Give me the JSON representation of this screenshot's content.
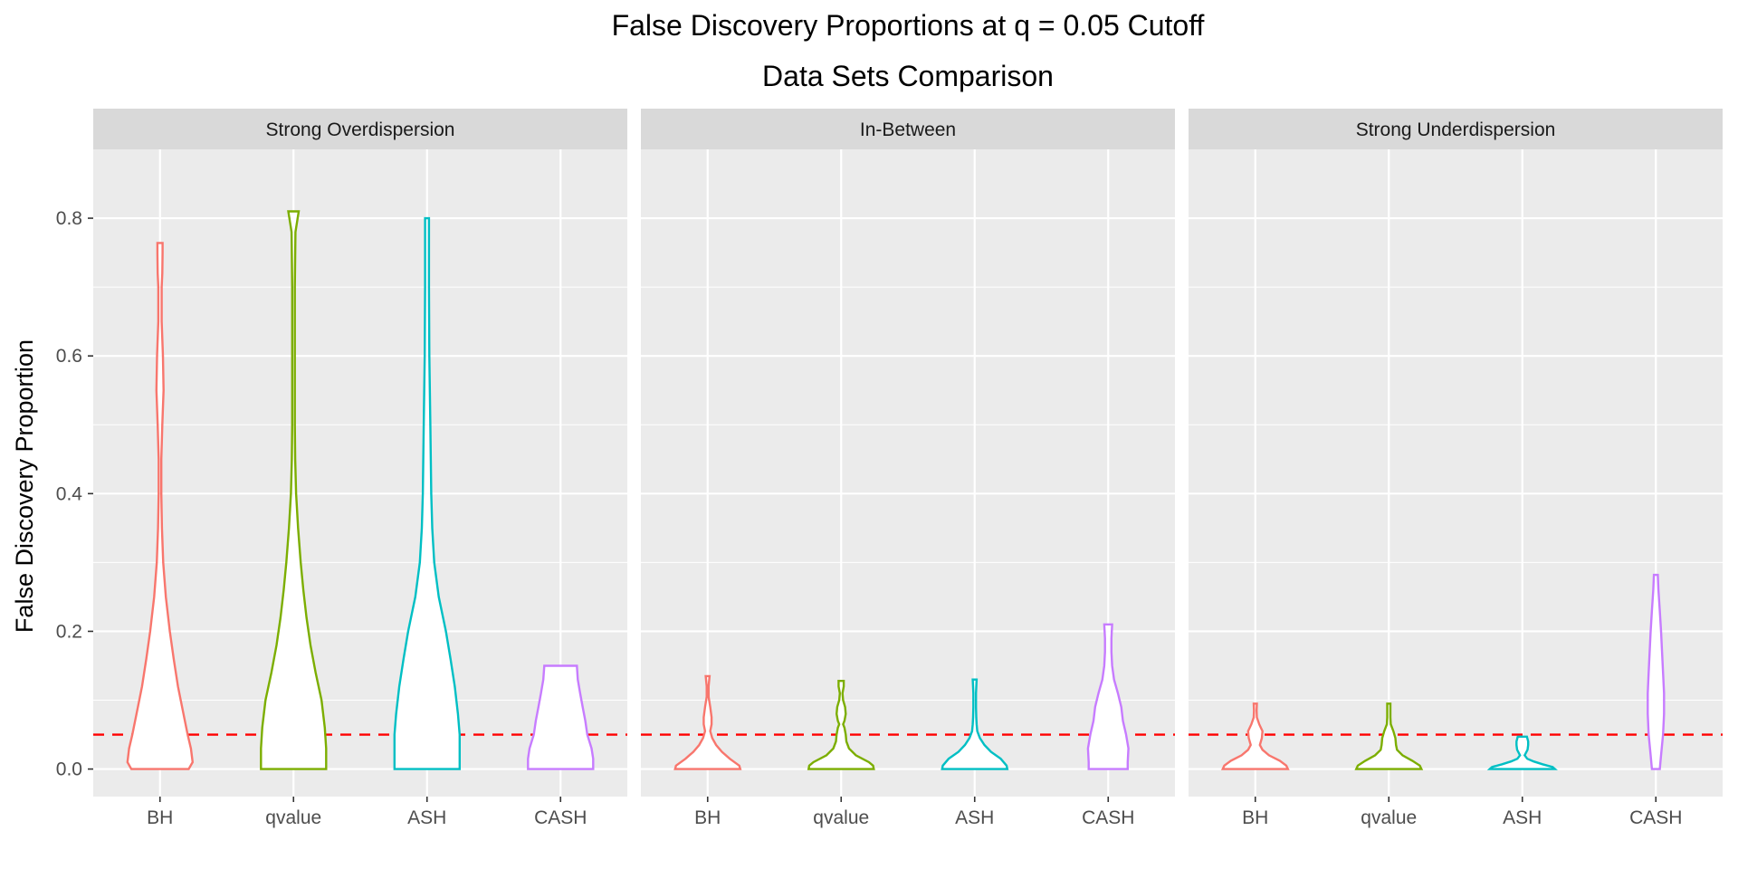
{
  "chart_data": {
    "type": "violin",
    "title": "False Discovery Proportions at q = 0.05 Cutoff",
    "subtitle": "Data Sets Comparison",
    "xlabel": "",
    "ylabel": "False Discovery Proportion",
    "ylim": [
      -0.04,
      0.9
    ],
    "yticks": [
      0.0,
      0.2,
      0.4,
      0.6,
      0.8
    ],
    "ytick_labels": [
      "0.0",
      "0.2",
      "0.4",
      "0.6",
      "0.8"
    ],
    "grid": true,
    "legend": "none",
    "reference_line": {
      "y": 0.05,
      "style": "dashed",
      "color": "#ff0000"
    },
    "categories": [
      "BH",
      "qvalue",
      "ASH",
      "CASH"
    ],
    "colors": [
      "#F8766D",
      "#7CAE00",
      "#00BFC4",
      "#C77CFF"
    ],
    "panels": [
      {
        "name": "Strong Overdispersion",
        "violins": [
          {
            "category": "BH",
            "min": 0.0,
            "max": 0.764,
            "profile": [
              [
                0.0,
                0.88
              ],
              [
                0.01,
                1.0
              ],
              [
                0.03,
                0.95
              ],
              [
                0.05,
                0.85
              ],
              [
                0.08,
                0.72
              ],
              [
                0.12,
                0.55
              ],
              [
                0.16,
                0.42
              ],
              [
                0.2,
                0.3
              ],
              [
                0.25,
                0.18
              ],
              [
                0.3,
                0.1
              ],
              [
                0.35,
                0.06
              ],
              [
                0.4,
                0.04
              ],
              [
                0.45,
                0.04
              ],
              [
                0.5,
                0.07
              ],
              [
                0.55,
                0.11
              ],
              [
                0.6,
                0.09
              ],
              [
                0.65,
                0.05
              ],
              [
                0.7,
                0.05
              ],
              [
                0.72,
                0.07
              ],
              [
                0.75,
                0.08
              ],
              [
                0.764,
                0.08
              ]
            ]
          },
          {
            "category": "qvalue",
            "min": 0.0,
            "max": 0.81,
            "profile": [
              [
                0.0,
                1.0
              ],
              [
                0.03,
                1.0
              ],
              [
                0.06,
                0.96
              ],
              [
                0.1,
                0.86
              ],
              [
                0.14,
                0.68
              ],
              [
                0.18,
                0.52
              ],
              [
                0.22,
                0.4
              ],
              [
                0.26,
                0.3
              ],
              [
                0.3,
                0.22
              ],
              [
                0.35,
                0.14
              ],
              [
                0.4,
                0.08
              ],
              [
                0.45,
                0.05
              ],
              [
                0.5,
                0.04
              ],
              [
                0.6,
                0.04
              ],
              [
                0.7,
                0.04
              ],
              [
                0.78,
                0.06
              ],
              [
                0.81,
                0.16
              ]
            ]
          },
          {
            "category": "ASH",
            "min": 0.0,
            "max": 0.8,
            "profile": [
              [
                0.0,
                1.0
              ],
              [
                0.05,
                1.0
              ],
              [
                0.08,
                0.95
              ],
              [
                0.12,
                0.85
              ],
              [
                0.16,
                0.72
              ],
              [
                0.2,
                0.58
              ],
              [
                0.25,
                0.36
              ],
              [
                0.3,
                0.22
              ],
              [
                0.35,
                0.16
              ],
              [
                0.4,
                0.13
              ],
              [
                0.5,
                0.1
              ],
              [
                0.6,
                0.07
              ],
              [
                0.7,
                0.06
              ],
              [
                0.8,
                0.06
              ]
            ]
          },
          {
            "category": "CASH",
            "min": 0.0,
            "max": 0.15,
            "profile": [
              [
                0.0,
                1.0
              ],
              [
                0.015,
                1.0
              ],
              [
                0.03,
                0.95
              ],
              [
                0.05,
                0.82
              ],
              [
                0.07,
                0.76
              ],
              [
                0.09,
                0.68
              ],
              [
                0.11,
                0.6
              ],
              [
                0.13,
                0.53
              ],
              [
                0.15,
                0.5
              ]
            ]
          }
        ]
      },
      {
        "name": "In-Between",
        "violins": [
          {
            "category": "BH",
            "min": 0.0,
            "max": 0.135,
            "profile": [
              [
                0.0,
                1.0
              ],
              [
                0.005,
                0.97
              ],
              [
                0.015,
                0.68
              ],
              [
                0.025,
                0.44
              ],
              [
                0.035,
                0.26
              ],
              [
                0.045,
                0.14
              ],
              [
                0.055,
                0.08
              ],
              [
                0.065,
                0.12
              ],
              [
                0.075,
                0.12
              ],
              [
                0.09,
                0.08
              ],
              [
                0.105,
                0.03
              ],
              [
                0.12,
                0.03
              ],
              [
                0.135,
                0.06
              ]
            ]
          },
          {
            "category": "qvalue",
            "min": 0.0,
            "max": 0.128,
            "profile": [
              [
                0.0,
                1.0
              ],
              [
                0.005,
                0.98
              ],
              [
                0.01,
                0.85
              ],
              [
                0.02,
                0.45
              ],
              [
                0.03,
                0.24
              ],
              [
                0.04,
                0.16
              ],
              [
                0.05,
                0.14
              ],
              [
                0.06,
                0.1
              ],
              [
                0.065,
                0.06
              ],
              [
                0.07,
                0.1
              ],
              [
                0.08,
                0.14
              ],
              [
                0.09,
                0.12
              ],
              [
                0.1,
                0.06
              ],
              [
                0.11,
                0.04
              ],
              [
                0.12,
                0.08
              ],
              [
                0.128,
                0.08
              ]
            ]
          },
          {
            "category": "ASH",
            "min": 0.0,
            "max": 0.13,
            "profile": [
              [
                0.0,
                1.0
              ],
              [
                0.005,
                0.98
              ],
              [
                0.015,
                0.8
              ],
              [
                0.025,
                0.5
              ],
              [
                0.035,
                0.3
              ],
              [
                0.045,
                0.16
              ],
              [
                0.055,
                0.08
              ],
              [
                0.065,
                0.06
              ],
              [
                0.075,
                0.05
              ],
              [
                0.09,
                0.04
              ],
              [
                0.11,
                0.04
              ],
              [
                0.13,
                0.06
              ]
            ]
          },
          {
            "category": "CASH",
            "min": 0.0,
            "max": 0.21,
            "profile": [
              [
                0.0,
                0.6
              ],
              [
                0.01,
                0.6
              ],
              [
                0.03,
                0.62
              ],
              [
                0.05,
                0.55
              ],
              [
                0.07,
                0.45
              ],
              [
                0.09,
                0.4
              ],
              [
                0.11,
                0.3
              ],
              [
                0.13,
                0.18
              ],
              [
                0.15,
                0.12
              ],
              [
                0.17,
                0.1
              ],
              [
                0.19,
                0.1
              ],
              [
                0.21,
                0.12
              ]
            ]
          }
        ]
      },
      {
        "name": "Strong Underdispersion",
        "violins": [
          {
            "category": "BH",
            "min": 0.0,
            "max": 0.095,
            "profile": [
              [
                0.0,
                1.0
              ],
              [
                0.005,
                0.95
              ],
              [
                0.012,
                0.75
              ],
              [
                0.02,
                0.42
              ],
              [
                0.028,
                0.22
              ],
              [
                0.035,
                0.14
              ],
              [
                0.045,
                0.2
              ],
              [
                0.055,
                0.22
              ],
              [
                0.065,
                0.12
              ],
              [
                0.075,
                0.05
              ],
              [
                0.085,
                0.04
              ],
              [
                0.095,
                0.05
              ]
            ]
          },
          {
            "category": "qvalue",
            "min": 0.0,
            "max": 0.095,
            "profile": [
              [
                0.0,
                1.0
              ],
              [
                0.005,
                0.95
              ],
              [
                0.012,
                0.72
              ],
              [
                0.02,
                0.42
              ],
              [
                0.028,
                0.25
              ],
              [
                0.035,
                0.22
              ],
              [
                0.045,
                0.2
              ],
              [
                0.055,
                0.14
              ],
              [
                0.065,
                0.06
              ],
              [
                0.075,
                0.05
              ],
              [
                0.085,
                0.05
              ],
              [
                0.095,
                0.05
              ]
            ]
          },
          {
            "category": "ASH",
            "min": 0.0,
            "max": 0.047,
            "profile": [
              [
                0.0,
                1.0
              ],
              [
                0.003,
                0.93
              ],
              [
                0.007,
                0.62
              ],
              [
                0.011,
                0.35
              ],
              [
                0.015,
                0.15
              ],
              [
                0.02,
                0.07
              ],
              [
                0.028,
                0.16
              ],
              [
                0.035,
                0.18
              ],
              [
                0.04,
                0.18
              ],
              [
                0.045,
                0.15
              ],
              [
                0.047,
                0.14
              ]
            ]
          },
          {
            "category": "CASH",
            "min": 0.0,
            "max": 0.282,
            "profile": [
              [
                0.0,
                0.12
              ],
              [
                0.02,
                0.16
              ],
              [
                0.05,
                0.22
              ],
              [
                0.08,
                0.25
              ],
              [
                0.11,
                0.25
              ],
              [
                0.14,
                0.22
              ],
              [
                0.17,
                0.19
              ],
              [
                0.2,
                0.16
              ],
              [
                0.23,
                0.12
              ],
              [
                0.26,
                0.08
              ],
              [
                0.282,
                0.06
              ]
            ]
          }
        ]
      }
    ]
  }
}
